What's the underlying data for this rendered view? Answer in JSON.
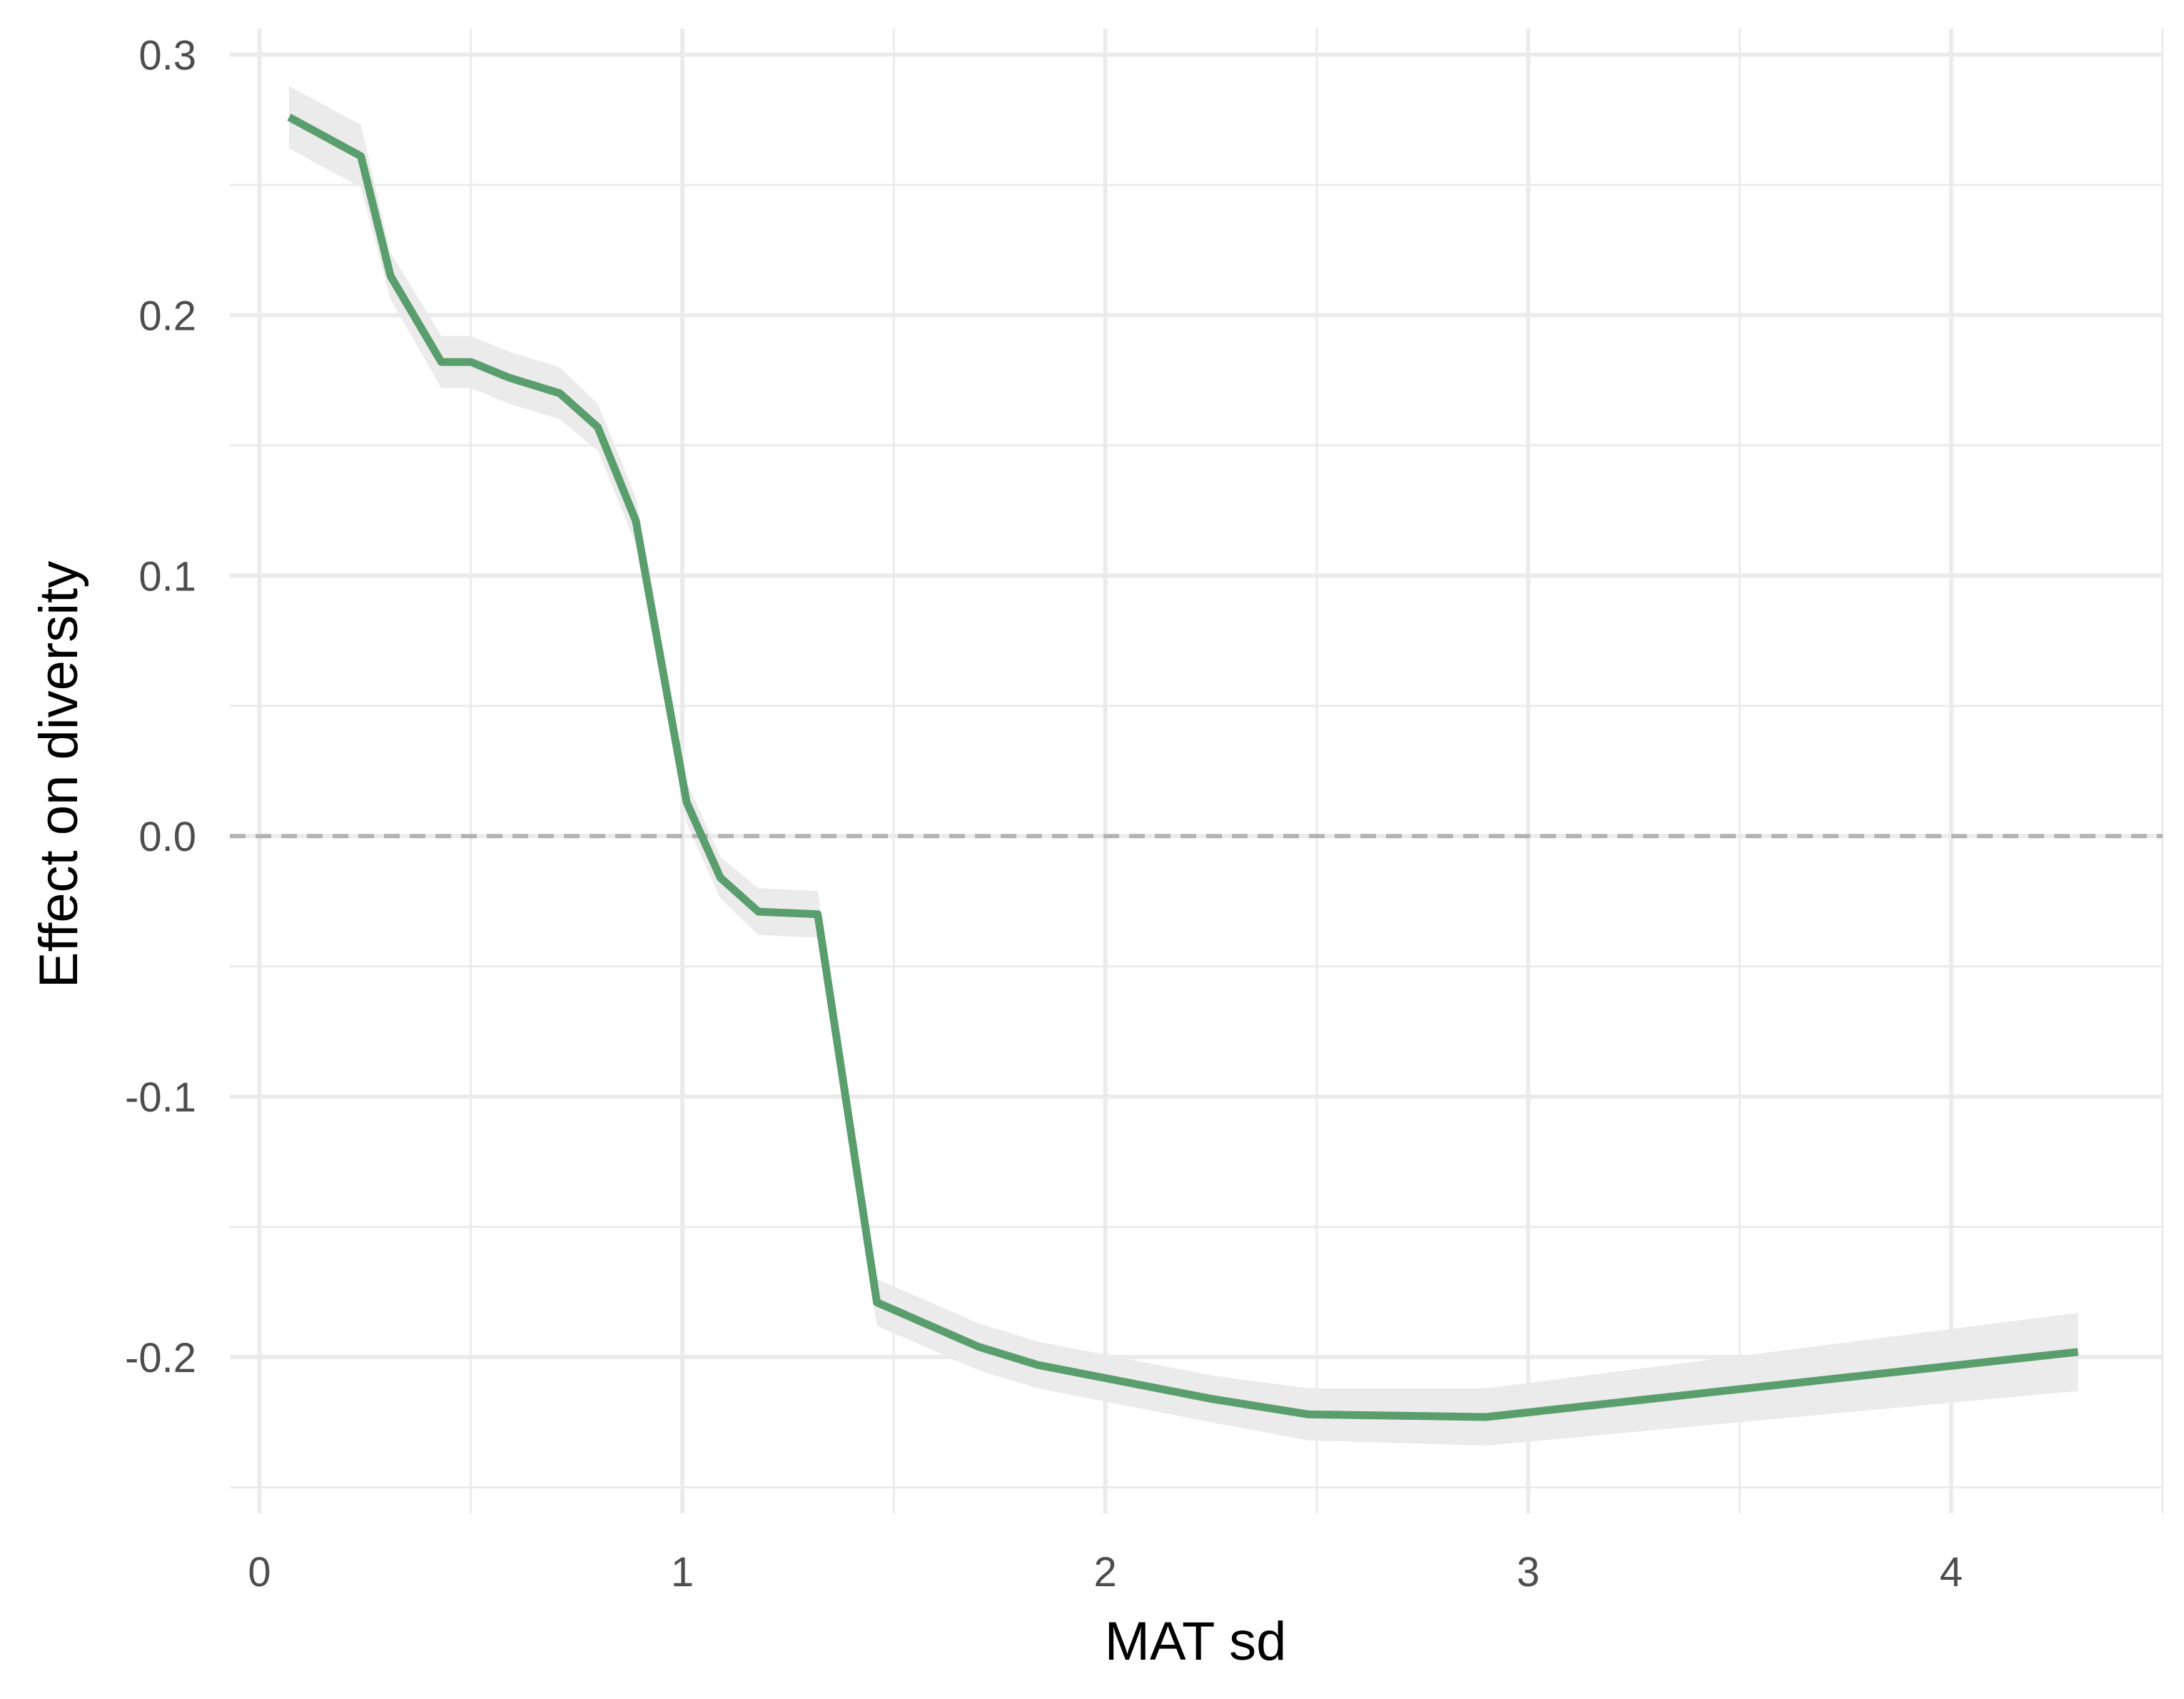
{
  "chart_data": {
    "type": "line",
    "title": "",
    "xlabel": "MAT sd",
    "ylabel": "Effect on diversity",
    "xlim": [
      -0.07,
      4.5
    ],
    "ylim": [
      -0.26,
      0.31
    ],
    "x_ticks": [
      0,
      1,
      2,
      3,
      4
    ],
    "x_tick_labels": [
      "0",
      "1",
      "2",
      "3",
      "4"
    ],
    "y_ticks": [
      -0.2,
      -0.1,
      0.0,
      0.1,
      0.2,
      0.3
    ],
    "y_tick_labels": [
      "-0.2",
      "-0.1",
      "0.0",
      "0.1",
      "0.2",
      "0.3"
    ],
    "grid": true,
    "reference_line": {
      "y": 0,
      "style": "dashed",
      "color": "#b3b3b3"
    },
    "line_color": "#5a9e6e",
    "band_color": "#ebebeb",
    "series": [
      {
        "x": [
          0.07,
          0.24,
          0.31,
          0.43,
          0.5,
          0.59,
          0.71,
          0.8,
          0.89,
          1.01,
          1.09,
          1.18,
          1.32,
          1.46,
          1.7,
          1.84,
          2.25,
          2.48,
          2.9,
          4.3
        ],
        "y": [
          0.276,
          0.261,
          0.215,
          0.182,
          0.182,
          0.176,
          0.17,
          0.157,
          0.121,
          0.013,
          -0.016,
          -0.029,
          -0.03,
          -0.179,
          -0.196,
          -0.203,
          -0.216,
          -0.222,
          -0.223,
          -0.198
        ],
        "lower": [
          0.264,
          0.249,
          0.206,
          0.172,
          0.172,
          0.166,
          0.16,
          0.148,
          0.112,
          0.005,
          -0.024,
          -0.038,
          -0.039,
          -0.188,
          -0.205,
          -0.212,
          -0.225,
          -0.232,
          -0.234,
          -0.213
        ],
        "upper": [
          0.288,
          0.273,
          0.224,
          0.192,
          0.192,
          0.186,
          0.18,
          0.166,
          0.13,
          0.021,
          -0.008,
          -0.02,
          -0.021,
          -0.17,
          -0.187,
          -0.194,
          -0.207,
          -0.212,
          -0.212,
          -0.183
        ]
      }
    ]
  }
}
